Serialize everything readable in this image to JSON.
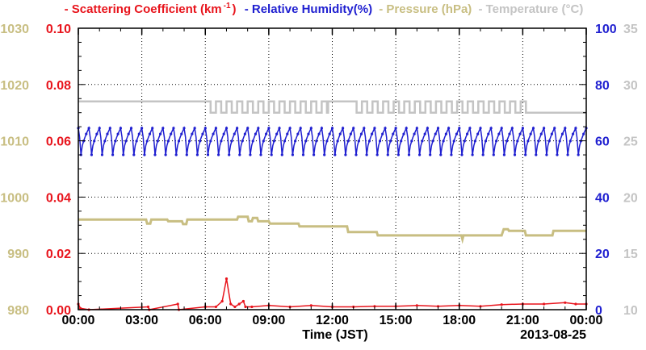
{
  "colors": {
    "scattering": "#e8141c",
    "humidity": "#1f1fd0",
    "pressure": "#c8be82",
    "temperature": "#c4c4c4",
    "grid": "#000000"
  },
  "legend": {
    "scattering_prefix": "- Scattering Coefficient (km",
    "scattering_sup": "-1",
    "scattering_suffix": ")",
    "humidity": "- Relative Humidity(%)",
    "pressure": "- Pressure (hPa)",
    "temperature": "- Temperature (°C)"
  },
  "chart_data": {
    "type": "line",
    "xlabel": "Time (JST)",
    "date_label": "2013-08-25",
    "x_ticks": [
      "00:00",
      "03:00",
      "06:00",
      "09:00",
      "12:00",
      "15:00",
      "18:00",
      "21:00",
      "00:00"
    ],
    "xlim_hours": [
      0,
      24
    ],
    "grid": true,
    "axes": {
      "scattering": {
        "side": "left-inner",
        "ylim": [
          0,
          0.1
        ],
        "ticks": [
          "0.00",
          "0.02",
          "0.04",
          "0.06",
          "0.08",
          "0.10"
        ]
      },
      "pressure": {
        "side": "left-outer",
        "ylim": [
          980,
          1030
        ],
        "ticks": [
          "980",
          "990",
          "1000",
          "1010",
          "1020",
          "1030"
        ]
      },
      "humidity": {
        "side": "right-inner",
        "ylim": [
          0,
          100
        ],
        "ticks": [
          "0",
          "20",
          "40",
          "60",
          "80",
          "100"
        ]
      },
      "temperature": {
        "side": "right-outer",
        "ylim": [
          10,
          35
        ],
        "ticks": [
          "10",
          "15",
          "20",
          "25",
          "30",
          "35"
        ]
      }
    },
    "series": [
      {
        "name": "Scattering Coefficient (km-1)",
        "key": "scattering",
        "points": [
          [
            0,
            0.002
          ],
          [
            0.1,
            0.0005
          ],
          [
            0.5,
            0
          ],
          [
            3.3,
            0.001
          ],
          [
            3.35,
            0
          ],
          [
            4.7,
            0.002
          ],
          [
            4.75,
            0
          ],
          [
            6.0,
            0.001
          ],
          [
            6.5,
            0.001
          ],
          [
            6.8,
            0.003
          ],
          [
            7.0,
            0.011
          ],
          [
            7.2,
            0.002
          ],
          [
            7.4,
            0.001
          ],
          [
            7.6,
            0.002
          ],
          [
            7.8,
            0.003
          ],
          [
            7.9,
            0.001
          ],
          [
            8.2,
            0.001
          ],
          [
            9.0,
            0.0015
          ],
          [
            10.0,
            0.001
          ],
          [
            11.0,
            0.0015
          ],
          [
            12.0,
            0.001
          ],
          [
            13.0,
            0.001
          ],
          [
            14.0,
            0.0012
          ],
          [
            15.0,
            0.0012
          ],
          [
            16.0,
            0.0015
          ],
          [
            17.0,
            0.0012
          ],
          [
            18.0,
            0.0015
          ],
          [
            19.0,
            0.0012
          ],
          [
            20.0,
            0.0018
          ],
          [
            21.0,
            0.002
          ],
          [
            22.0,
            0.002
          ],
          [
            23.0,
            0.0025
          ],
          [
            23.5,
            0.002
          ],
          [
            24.0,
            0.002
          ]
        ]
      },
      {
        "name": "Relative Humidity(%)",
        "key": "humidity",
        "pattern": "oscillating",
        "min": 55,
        "max": 64.5,
        "period_hours": 0.5,
        "range_hours": [
          0,
          24
        ]
      },
      {
        "name": "Pressure (hPa)",
        "key": "pressure",
        "points": [
          [
            0,
            996
          ],
          [
            3.2,
            996
          ],
          [
            3.25,
            995.3
          ],
          [
            3.4,
            995.3
          ],
          [
            3.45,
            996
          ],
          [
            4.2,
            996
          ],
          [
            4.25,
            995.7
          ],
          [
            4.9,
            995.7
          ],
          [
            4.95,
            995.2
          ],
          [
            5.1,
            995.2
          ],
          [
            5.15,
            996
          ],
          [
            7.5,
            996
          ],
          [
            7.55,
            996.5
          ],
          [
            8.0,
            996.5
          ],
          [
            8.05,
            995.7
          ],
          [
            8.2,
            995.7
          ],
          [
            8.25,
            996.3
          ],
          [
            8.45,
            996.3
          ],
          [
            8.5,
            995.7
          ],
          [
            9.0,
            995.7
          ],
          [
            9.05,
            995.3
          ],
          [
            10.4,
            995.3
          ],
          [
            10.45,
            994.8
          ],
          [
            12.7,
            994.8
          ],
          [
            12.75,
            993.8
          ],
          [
            14.1,
            993.8
          ],
          [
            14.15,
            993.2
          ],
          [
            18.1,
            993.2
          ],
          [
            18.15,
            992.5
          ],
          [
            18.2,
            993.2
          ],
          [
            20.0,
            993.2
          ],
          [
            20.1,
            994.3
          ],
          [
            20.3,
            994.3
          ],
          [
            20.35,
            994.0
          ],
          [
            21.1,
            994.0
          ],
          [
            21.15,
            993.2
          ],
          [
            22.4,
            993.2
          ],
          [
            22.45,
            994.0
          ],
          [
            24,
            994.0
          ]
        ]
      },
      {
        "name": "Temperature (°C)",
        "key": "temperature",
        "pattern": "stepped",
        "segments": [
          {
            "from": 0,
            "to": 6.0,
            "level": 28.5
          },
          {
            "from": 6.0,
            "to": 11.8,
            "toggle": [
              27.5,
              28.5
            ],
            "period_hours": 0.5
          },
          {
            "from": 11.8,
            "to": 12.9,
            "level": 28.5
          },
          {
            "from": 12.9,
            "to": 21.2,
            "toggle": [
              27.5,
              28.5
            ],
            "period_hours": 0.5
          },
          {
            "from": 21.2,
            "to": 24.0,
            "level": 27.5
          }
        ]
      }
    ]
  }
}
